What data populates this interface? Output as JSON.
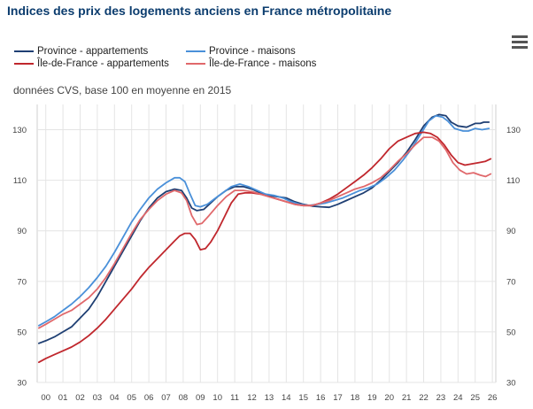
{
  "title": "Indices des prix des logements anciens en France métropolitaine",
  "subtitle": "données CVS, base 100 en moyenne en 2015",
  "menu_icon": "hamburger-menu-icon",
  "chart_data": {
    "type": "line",
    "title": "Indices des prix des logements anciens en France métropolitaine",
    "subtitle": "données CVS, base 100 en moyenne en 2015",
    "xlabel": "",
    "ylabel": "",
    "xlim": [
      1999.5,
      2026.2
    ],
    "ylim": [
      30,
      140
    ],
    "x_ticks": [
      "00",
      "01",
      "02",
      "03",
      "04",
      "05",
      "06",
      "07",
      "08",
      "09",
      "10",
      "11",
      "12",
      "13",
      "14",
      "15",
      "16",
      "17",
      "18",
      "19",
      "20",
      "21",
      "22",
      "23",
      "24",
      "25",
      "26"
    ],
    "y_ticks": [
      30,
      50,
      70,
      90,
      110,
      130
    ],
    "grid": true,
    "legend_position": "top-left",
    "series": [
      {
        "name": "Province - appartements",
        "color": "#1f3f73",
        "points": [
          [
            1999.6,
            45.5
          ],
          [
            2000.0,
            46.5
          ],
          [
            2000.5,
            48
          ],
          [
            2001.0,
            50
          ],
          [
            2001.5,
            52
          ],
          [
            2002.0,
            55.5
          ],
          [
            2002.5,
            59
          ],
          [
            2003.0,
            64
          ],
          [
            2003.5,
            70
          ],
          [
            2004.0,
            76
          ],
          [
            2004.5,
            82
          ],
          [
            2005.0,
            88
          ],
          [
            2005.5,
            94
          ],
          [
            2006.0,
            99
          ],
          [
            2006.5,
            103
          ],
          [
            2007.0,
            105.5
          ],
          [
            2007.5,
            106.5
          ],
          [
            2007.9,
            106
          ],
          [
            2008.2,
            103
          ],
          [
            2008.5,
            99
          ],
          [
            2008.8,
            98
          ],
          [
            2009.2,
            98.5
          ],
          [
            2009.6,
            101
          ],
          [
            2010.0,
            103.5
          ],
          [
            2010.5,
            106
          ],
          [
            2011.0,
            107.5
          ],
          [
            2011.5,
            107.5
          ],
          [
            2012.0,
            106.5
          ],
          [
            2012.5,
            105
          ],
          [
            2013.0,
            104
          ],
          [
            2013.5,
            103.5
          ],
          [
            2014.0,
            103
          ],
          [
            2014.5,
            101.5
          ],
          [
            2015.0,
            100.5
          ],
          [
            2015.5,
            99.8
          ],
          [
            2016.0,
            99.5
          ],
          [
            2016.5,
            99.3
          ],
          [
            2017.0,
            100.5
          ],
          [
            2017.5,
            102
          ],
          [
            2018.0,
            103.5
          ],
          [
            2018.5,
            105
          ],
          [
            2019.0,
            107
          ],
          [
            2019.5,
            110
          ],
          [
            2020.0,
            113.5
          ],
          [
            2020.5,
            117
          ],
          [
            2021.0,
            121
          ],
          [
            2021.5,
            126
          ],
          [
            2022.0,
            131.5
          ],
          [
            2022.5,
            135
          ],
          [
            2022.9,
            136
          ],
          [
            2023.3,
            135.5
          ],
          [
            2023.6,
            133
          ],
          [
            2024.0,
            131.5
          ],
          [
            2024.5,
            131
          ],
          [
            2025.0,
            132.5
          ],
          [
            2025.3,
            132.5
          ],
          [
            2025.5,
            133
          ],
          [
            2025.8,
            133
          ]
        ]
      },
      {
        "name": "Province - maisons",
        "color": "#4a90d9",
        "points": [
          [
            1999.6,
            52.5
          ],
          [
            2000.0,
            54
          ],
          [
            2000.5,
            56
          ],
          [
            2001.0,
            58.5
          ],
          [
            2001.5,
            61
          ],
          [
            2002.0,
            64
          ],
          [
            2002.5,
            67.5
          ],
          [
            2003.0,
            71.5
          ],
          [
            2003.5,
            76
          ],
          [
            2004.0,
            81.5
          ],
          [
            2004.5,
            87.5
          ],
          [
            2005.0,
            93.5
          ],
          [
            2005.5,
            98.5
          ],
          [
            2006.0,
            103
          ],
          [
            2006.5,
            106.5
          ],
          [
            2007.0,
            109
          ],
          [
            2007.5,
            111
          ],
          [
            2007.8,
            111
          ],
          [
            2008.1,
            109.5
          ],
          [
            2008.4,
            104.5
          ],
          [
            2008.7,
            100
          ],
          [
            2009.0,
            99.5
          ],
          [
            2009.4,
            100.5
          ],
          [
            2009.8,
            102.5
          ],
          [
            2010.3,
            105
          ],
          [
            2010.8,
            107.5
          ],
          [
            2011.3,
            108.5
          ],
          [
            2011.8,
            107.5
          ],
          [
            2012.3,
            106
          ],
          [
            2012.8,
            104.5
          ],
          [
            2013.3,
            104
          ],
          [
            2013.8,
            103
          ],
          [
            2014.3,
            101.5
          ],
          [
            2014.8,
            100.5
          ],
          [
            2015.3,
            100
          ],
          [
            2015.8,
            100.5
          ],
          [
            2016.3,
            101
          ],
          [
            2016.8,
            102
          ],
          [
            2017.3,
            103
          ],
          [
            2017.8,
            104.5
          ],
          [
            2018.3,
            106
          ],
          [
            2018.8,
            107
          ],
          [
            2019.3,
            108.5
          ],
          [
            2019.8,
            111
          ],
          [
            2020.3,
            114
          ],
          [
            2020.8,
            118
          ],
          [
            2021.3,
            122.5
          ],
          [
            2021.8,
            128
          ],
          [
            2022.3,
            133.5
          ],
          [
            2022.7,
            135.5
          ],
          [
            2023.1,
            135
          ],
          [
            2023.4,
            133.5
          ],
          [
            2023.8,
            130.5
          ],
          [
            2024.3,
            129.5
          ],
          [
            2024.6,
            129.5
          ],
          [
            2025.0,
            130.5
          ],
          [
            2025.4,
            130
          ],
          [
            2025.8,
            130.5
          ]
        ]
      },
      {
        "name": "Île-de-France - appartements",
        "color": "#c0272d",
        "points": [
          [
            1999.6,
            38
          ],
          [
            2000.0,
            39.5
          ],
          [
            2000.5,
            41
          ],
          [
            2001.0,
            42.5
          ],
          [
            2001.5,
            44
          ],
          [
            2002.0,
            46
          ],
          [
            2002.5,
            48.5
          ],
          [
            2003.0,
            51.5
          ],
          [
            2003.5,
            55
          ],
          [
            2004.0,
            59
          ],
          [
            2004.5,
            63
          ],
          [
            2005.0,
            67
          ],
          [
            2005.5,
            71.5
          ],
          [
            2006.0,
            75.5
          ],
          [
            2006.5,
            79
          ],
          [
            2007.0,
            82.5
          ],
          [
            2007.5,
            86
          ],
          [
            2007.8,
            88
          ],
          [
            2008.1,
            89
          ],
          [
            2008.4,
            89
          ],
          [
            2008.7,
            86.5
          ],
          [
            2009.0,
            82.5
          ],
          [
            2009.3,
            83
          ],
          [
            2009.6,
            85.5
          ],
          [
            2010.0,
            90
          ],
          [
            2010.4,
            95.5
          ],
          [
            2010.8,
            101
          ],
          [
            2011.2,
            104.5
          ],
          [
            2011.6,
            105
          ],
          [
            2012.0,
            105
          ],
          [
            2012.5,
            104.5
          ],
          [
            2013.0,
            103.5
          ],
          [
            2013.5,
            102.5
          ],
          [
            2014.0,
            101.5
          ],
          [
            2014.5,
            100.5
          ],
          [
            2015.0,
            100
          ],
          [
            2015.5,
            100
          ],
          [
            2016.0,
            101
          ],
          [
            2016.5,
            102.5
          ],
          [
            2017.0,
            104.5
          ],
          [
            2017.5,
            107
          ],
          [
            2018.0,
            109.5
          ],
          [
            2018.5,
            112
          ],
          [
            2019.0,
            115
          ],
          [
            2019.5,
            118.5
          ],
          [
            2020.0,
            122.5
          ],
          [
            2020.5,
            125.5
          ],
          [
            2021.0,
            127
          ],
          [
            2021.5,
            128.5
          ],
          [
            2022.0,
            129
          ],
          [
            2022.4,
            128.5
          ],
          [
            2022.8,
            127
          ],
          [
            2023.2,
            124
          ],
          [
            2023.6,
            120
          ],
          [
            2024.0,
            117
          ],
          [
            2024.4,
            116
          ],
          [
            2024.8,
            116.5
          ],
          [
            2025.2,
            117
          ],
          [
            2025.6,
            117.5
          ],
          [
            2025.9,
            118.5
          ]
        ]
      },
      {
        "name": "Île-de-France - maisons",
        "color": "#e0686b",
        "points": [
          [
            1999.6,
            51.5
          ],
          [
            2000.0,
            53
          ],
          [
            2000.5,
            55
          ],
          [
            2001.0,
            57
          ],
          [
            2001.5,
            58.5
          ],
          [
            2002.0,
            61
          ],
          [
            2002.5,
            63.5
          ],
          [
            2003.0,
            67
          ],
          [
            2003.5,
            71.5
          ],
          [
            2004.0,
            77
          ],
          [
            2004.5,
            83
          ],
          [
            2005.0,
            89
          ],
          [
            2005.5,
            94.5
          ],
          [
            2006.0,
            98.5
          ],
          [
            2006.5,
            102
          ],
          [
            2007.0,
            104.5
          ],
          [
            2007.5,
            106
          ],
          [
            2007.9,
            105
          ],
          [
            2008.2,
            102
          ],
          [
            2008.5,
            96
          ],
          [
            2008.8,
            92.5
          ],
          [
            2009.1,
            93
          ],
          [
            2009.5,
            96
          ],
          [
            2010.0,
            100
          ],
          [
            2010.5,
            103.5
          ],
          [
            2011.0,
            106
          ],
          [
            2011.5,
            106
          ],
          [
            2012.0,
            105.5
          ],
          [
            2012.5,
            104.5
          ],
          [
            2013.0,
            103.5
          ],
          [
            2013.5,
            102.5
          ],
          [
            2014.0,
            101.5
          ],
          [
            2014.5,
            100.5
          ],
          [
            2015.0,
            100
          ],
          [
            2015.5,
            100
          ],
          [
            2016.0,
            101
          ],
          [
            2016.5,
            102
          ],
          [
            2017.0,
            103.5
          ],
          [
            2017.5,
            105
          ],
          [
            2018.0,
            106.5
          ],
          [
            2018.5,
            107.5
          ],
          [
            2019.0,
            109
          ],
          [
            2019.5,
            111
          ],
          [
            2020.0,
            114
          ],
          [
            2020.5,
            117.5
          ],
          [
            2021.0,
            120.5
          ],
          [
            2021.5,
            124
          ],
          [
            2022.0,
            127
          ],
          [
            2022.5,
            127
          ],
          [
            2022.9,
            125.5
          ],
          [
            2023.3,
            122
          ],
          [
            2023.7,
            117
          ],
          [
            2024.1,
            114
          ],
          [
            2024.5,
            112.5
          ],
          [
            2024.9,
            113
          ],
          [
            2025.3,
            112
          ],
          [
            2025.6,
            111.5
          ],
          [
            2025.9,
            112.5
          ]
        ]
      }
    ]
  }
}
